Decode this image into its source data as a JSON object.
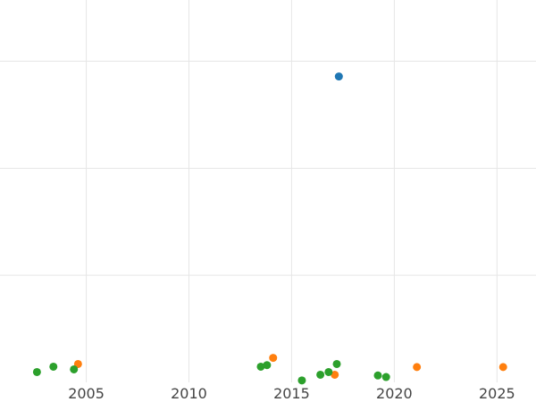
{
  "chart_data": {
    "type": "scatter",
    "title": "",
    "xlabel": "",
    "ylabel": "",
    "grid": true,
    "xlim": [
      2000.8,
      2026.9
    ],
    "ylim": [
      0,
      1
    ],
    "x_ticks": [
      2005,
      2010,
      2015,
      2020,
      2025
    ],
    "x_tick_labels": [
      "2005",
      "2010",
      "2015",
      "2020",
      "2025"
    ],
    "y_gridlines": [
      0.28,
      0.56,
      0.84
    ],
    "series": [
      {
        "color": "#1f77b4",
        "points": [
          {
            "x": 2017.3,
            "y": 0.8
          }
        ]
      },
      {
        "color": "#ff7f0e",
        "points": [
          {
            "x": 2004.6,
            "y": 0.048
          },
          {
            "x": 2014.1,
            "y": 0.064
          },
          {
            "x": 2017.1,
            "y": 0.02
          },
          {
            "x": 2021.1,
            "y": 0.04
          },
          {
            "x": 2025.3,
            "y": 0.04
          }
        ]
      },
      {
        "color": "#2ca02c",
        "points": [
          {
            "x": 2002.6,
            "y": 0.027
          },
          {
            "x": 2003.4,
            "y": 0.041
          },
          {
            "x": 2004.4,
            "y": 0.034
          },
          {
            "x": 2013.5,
            "y": 0.041
          },
          {
            "x": 2013.8,
            "y": 0.045
          },
          {
            "x": 2015.5,
            "y": 0.005
          },
          {
            "x": 2016.4,
            "y": 0.02
          },
          {
            "x": 2016.8,
            "y": 0.027
          },
          {
            "x": 2017.2,
            "y": 0.048
          },
          {
            "x": 2019.2,
            "y": 0.018
          },
          {
            "x": 2019.6,
            "y": 0.014
          }
        ]
      }
    ]
  }
}
